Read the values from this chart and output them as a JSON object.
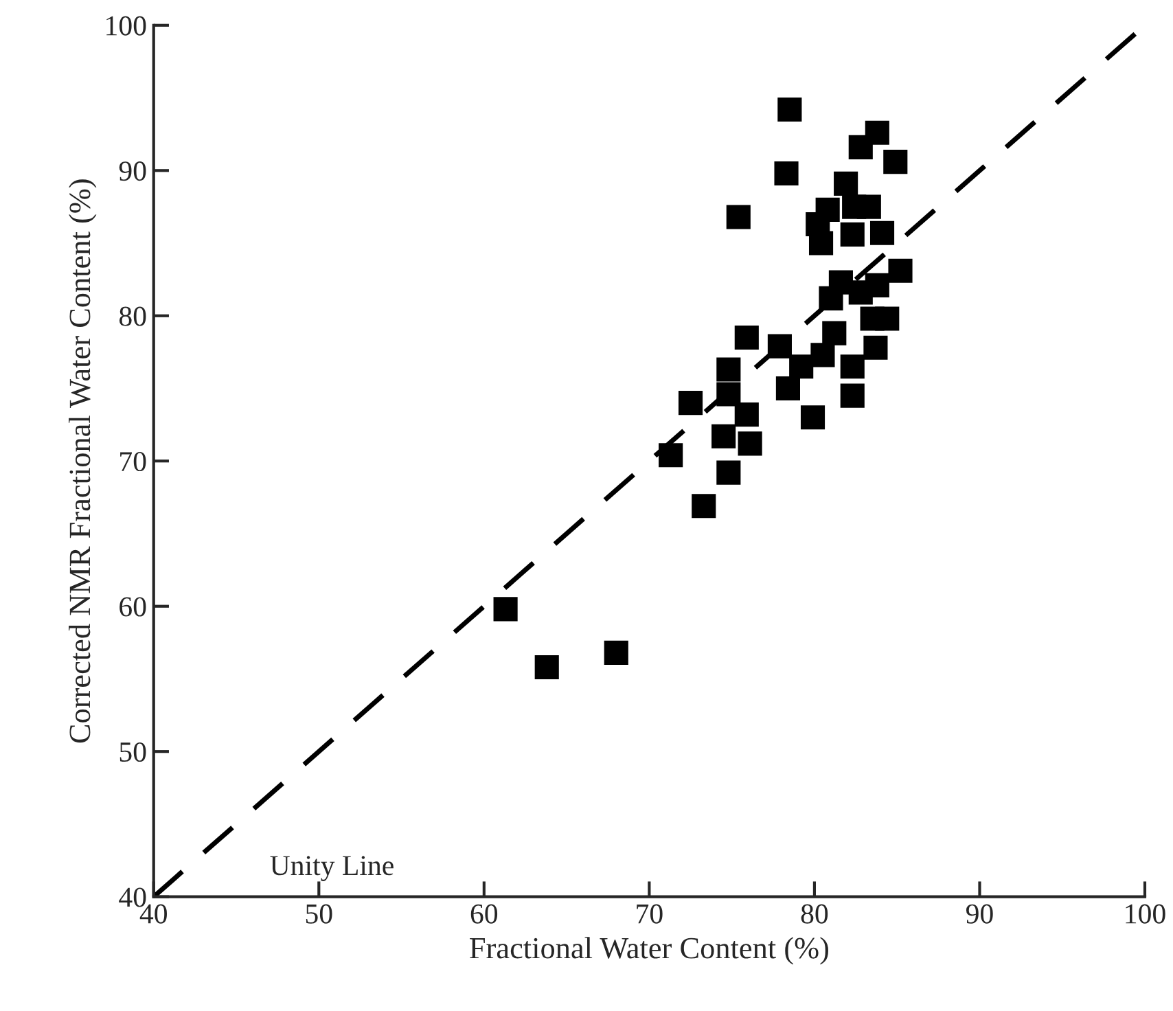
{
  "chart_data": {
    "type": "scatter",
    "xlabel": "Fractional Water Content (%)",
    "ylabel": "Corrected NMR Fractional Water Content (%)",
    "xlim": [
      40,
      100
    ],
    "ylim": [
      40,
      100
    ],
    "xticks": [
      40,
      50,
      60,
      70,
      80,
      90,
      100
    ],
    "yticks": [
      40,
      50,
      60,
      70,
      80,
      90,
      100
    ],
    "grid": false,
    "legend": false,
    "annotations": [
      "Unity Line"
    ],
    "series": [
      {
        "marker": "square",
        "color": "#000000",
        "x": [
          61.3,
          63.8,
          68.0,
          78.5,
          83.8,
          82.8,
          84.9,
          78.3,
          81.9,
          83.3,
          82.4,
          80.8,
          75.4,
          80.2,
          80.4,
          82.3,
          84.1,
          81.6,
          85.2,
          81.0,
          83.8,
          82.8,
          83.5,
          84.4,
          75.9,
          77.9,
          81.2,
          83.7,
          74.8,
          80.5,
          79.2,
          82.3,
          78.4,
          82.3,
          72.5,
          74.8,
          75.9,
          79.9,
          74.5,
          76.1,
          71.3,
          74.8,
          73.3
        ],
        "values": [
          59.8,
          55.8,
          56.8,
          94.2,
          92.6,
          91.6,
          90.6,
          89.8,
          89.1,
          87.5,
          87.5,
          87.3,
          86.8,
          86.3,
          85.0,
          85.6,
          85.7,
          82.3,
          83.1,
          81.2,
          82.1,
          81.6,
          79.8,
          79.8,
          78.5,
          77.9,
          78.8,
          77.8,
          76.3,
          77.3,
          76.5,
          76.5,
          75.0,
          74.5,
          74.0,
          74.6,
          73.2,
          73.0,
          71.7,
          71.2,
          70.4,
          69.2,
          66.9
        ]
      },
      {
        "type": "line",
        "line_style": "dashed",
        "color": "#000000",
        "x": [
          40,
          100
        ],
        "values": [
          40,
          100
        ]
      }
    ]
  }
}
